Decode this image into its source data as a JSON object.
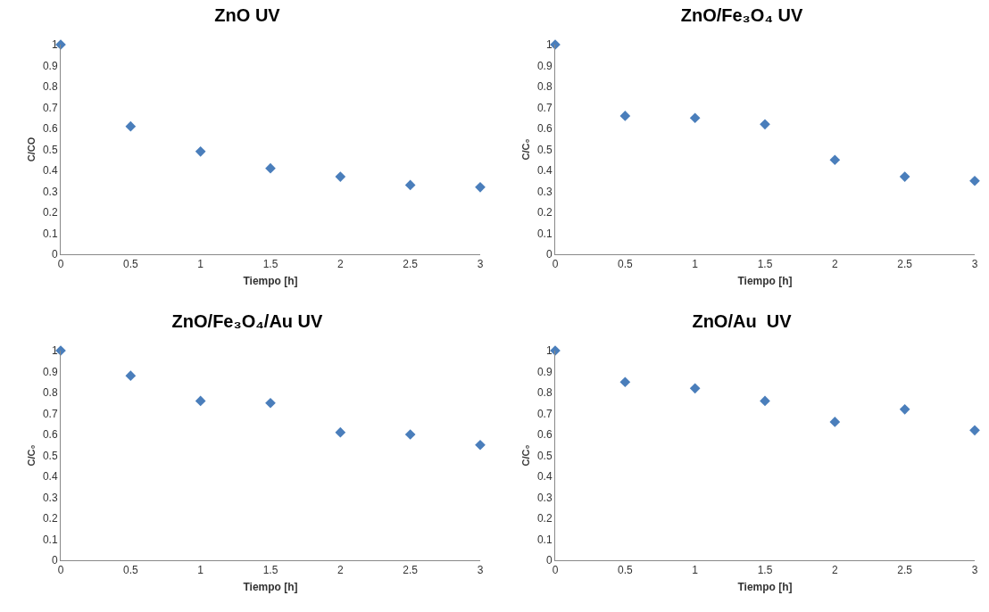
{
  "chart_data": [
    {
      "type": "scatter",
      "title": "ZnO UV",
      "xlabel": "Tiempo [h]",
      "ylabel": "C/CO",
      "x": [
        0,
        0.5,
        1,
        1.5,
        2,
        2.5,
        3
      ],
      "values": [
        1,
        0.61,
        0.49,
        0.41,
        0.37,
        0.33,
        0.32
      ],
      "color": "#4a7ebb",
      "marker": "diamond",
      "xlim": [
        0,
        3
      ],
      "xticks": [
        0,
        0.5,
        1,
        1.5,
        2,
        2.5,
        3
      ],
      "ylim": [
        0,
        1
      ],
      "yticks": [
        0,
        0.1,
        0.2,
        0.3,
        0.4,
        0.5,
        0.6,
        0.7,
        0.8,
        0.9,
        1
      ]
    },
    {
      "type": "scatter",
      "title": "ZnO/Fe₃O₄ UV",
      "xlabel": "Tiempo [h]",
      "ylabel": "C/C₀",
      "x": [
        0,
        0.5,
        1,
        1.5,
        2,
        2.5,
        3
      ],
      "values": [
        1,
        0.66,
        0.65,
        0.62,
        0.45,
        0.37,
        0.35
      ],
      "color": "#4a7ebb",
      "marker": "diamond",
      "xlim": [
        0,
        3
      ],
      "xticks": [
        0,
        0.5,
        1,
        1.5,
        2,
        2.5,
        3
      ],
      "ylim": [
        0,
        1
      ],
      "yticks": [
        0,
        0.1,
        0.2,
        0.3,
        0.4,
        0.5,
        0.6,
        0.7,
        0.8,
        0.9,
        1
      ]
    },
    {
      "type": "scatter",
      "title": "ZnO/Fe₃O₄/Au UV",
      "xlabel": "Tiempo [h]",
      "ylabel": "C/C₀",
      "x": [
        0,
        0.5,
        1,
        1.5,
        2,
        2.5,
        3
      ],
      "values": [
        1,
        0.88,
        0.76,
        0.75,
        0.61,
        0.6,
        0.55
      ],
      "color": "#4a7ebb",
      "marker": "diamond",
      "xlim": [
        0,
        3
      ],
      "xticks": [
        0,
        0.5,
        1,
        1.5,
        2,
        2.5,
        3
      ],
      "ylim": [
        0,
        1
      ],
      "yticks": [
        0,
        0.1,
        0.2,
        0.3,
        0.4,
        0.5,
        0.6,
        0.7,
        0.8,
        0.9,
        1
      ]
    },
    {
      "type": "scatter",
      "title": "ZnO/Au  UV",
      "xlabel": "Tiempo [h]",
      "ylabel": "C/C₀",
      "x": [
        0,
        0.5,
        1,
        1.5,
        2,
        2.5,
        3
      ],
      "values": [
        1,
        0.85,
        0.82,
        0.76,
        0.66,
        0.72,
        0.62
      ],
      "color": "#4a7ebb",
      "marker": "diamond",
      "xlim": [
        0,
        3
      ],
      "xticks": [
        0,
        0.5,
        1,
        1.5,
        2,
        2.5,
        3
      ],
      "ylim": [
        0,
        1
      ],
      "yticks": [
        0,
        0.1,
        0.2,
        0.3,
        0.4,
        0.5,
        0.6,
        0.7,
        0.8,
        0.9,
        1
      ]
    }
  ]
}
